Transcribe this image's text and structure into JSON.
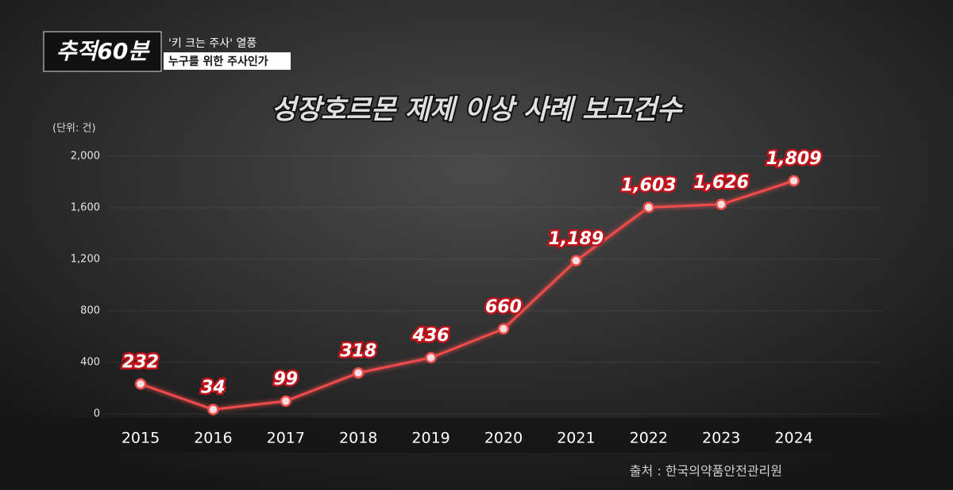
{
  "chart_data": {
    "type": "line",
    "header": {
      "logo": "추적60분",
      "tagline": "'키 크는 주사' 열풍",
      "subtitle": "누구를 위한 주사인가"
    },
    "title": "성장호르몬 제제 이상 사례 보고건수",
    "unit_label": "(단위: 건)",
    "source": "출처 : 한국의약품안전관리원",
    "categories": [
      "2015",
      "2016",
      "2017",
      "2018",
      "2019",
      "2020",
      "2021",
      "2022",
      "2023",
      "2024"
    ],
    "values": [
      232,
      34,
      99,
      318,
      436,
      660,
      1189,
      1603,
      1626,
      1809
    ],
    "value_labels": [
      "232",
      "34",
      "99",
      "318",
      "436",
      "660",
      "1,189",
      "1,603",
      "1,626",
      "1,809"
    ],
    "color": "#ef4b4b",
    "ylim": [
      0,
      2000
    ],
    "yticks": [
      0,
      400,
      800,
      {
        "value": 1200,
        "label": "1,200"
      },
      {
        "value": 1600,
        "label": "1,600"
      },
      {
        "value": 2000,
        "label": "2,000"
      }
    ],
    "grid": true
  }
}
